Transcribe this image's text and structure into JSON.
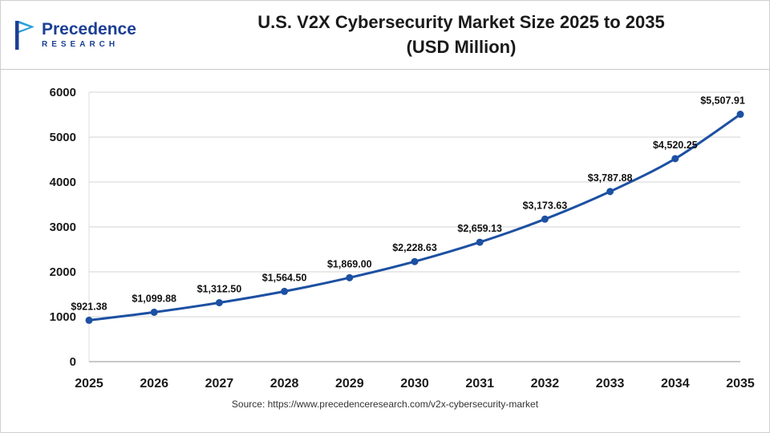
{
  "logo": {
    "name": "Precedence",
    "subtitle": "RESEARCH"
  },
  "source": "Source: https://www.precedenceresearch.com/v2x-cybersecurity-market",
  "chart_data": {
    "type": "line",
    "title": "U.S. V2X Cybersecurity Market Size 2025 to 2035 (USD Million)",
    "title_line1": "U.S. V2X Cybersecurity Market Size 2025 to 2035",
    "title_line2": "(USD Million)",
    "categories": [
      "2025",
      "2026",
      "2027",
      "2028",
      "2029",
      "2030",
      "2031",
      "2032",
      "2033",
      "2034",
      "2035"
    ],
    "values": [
      921.38,
      1099.88,
      1312.5,
      1564.5,
      1869.0,
      2228.63,
      2659.13,
      3173.63,
      3787.88,
      4520.25,
      5507.91
    ],
    "labels": [
      "$921.38",
      "$1,099.88",
      "$1,312.50",
      "$1,564.50",
      "$1,869.00",
      "$2,228.63",
      "$2,659.13",
      "$3,173.63",
      "$3,787.88",
      "$4,520.25",
      "$5,507.91"
    ],
    "xlabel": "",
    "ylabel": "",
    "ylim": [
      0,
      6000
    ],
    "ytick_step": 1000,
    "grid": true,
    "legend": "none",
    "line_color": "#1d50a2",
    "grid_color": "#dcdcdc",
    "baseline_color": "#a8a8a8"
  }
}
